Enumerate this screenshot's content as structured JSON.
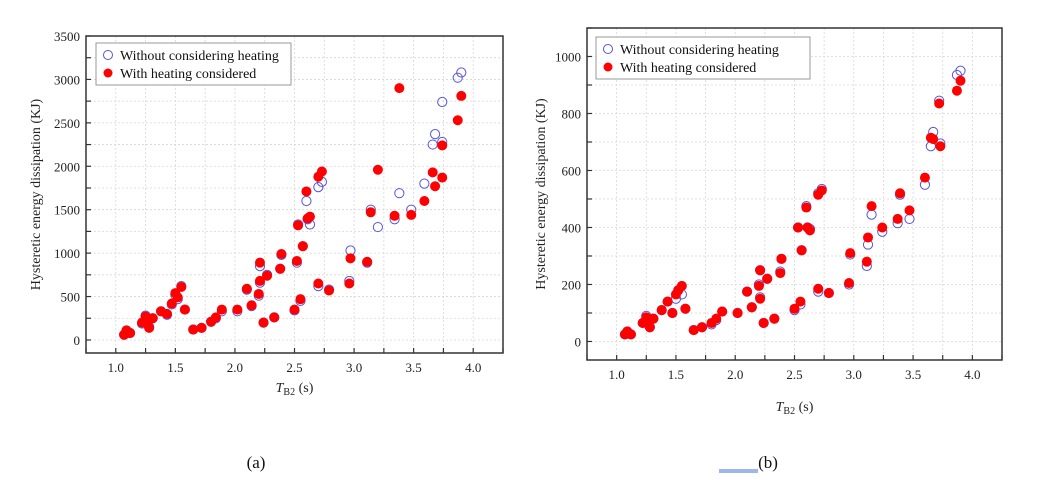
{
  "chart_data": [
    {
      "type": "scatter",
      "panel_label": "(a)",
      "title": "",
      "xlabel_main": "T",
      "xlabel_sub": "B2",
      "xlabel_unit": " (s)",
      "ylabel": "Hysteretic energy dissipation (KJ)",
      "xlim": [
        0.75,
        4.25
      ],
      "ylim": [
        -150,
        3500
      ],
      "xticks": [
        1.0,
        1.5,
        2.0,
        2.5,
        3.0,
        3.5,
        4.0
      ],
      "xtick_labels": [
        "1.0",
        "1.5",
        "2.0",
        "2.5",
        "3.0",
        "3.5",
        "4.0"
      ],
      "yticks": [
        0,
        500,
        1000,
        1500,
        2000,
        2500,
        3000,
        3500
      ],
      "ytick_labels": [
        "0",
        "500",
        "1000",
        "1500",
        "2000",
        "2500",
        "3000",
        "3500"
      ],
      "grid": true,
      "legend_position": "top-left",
      "series": [
        {
          "name": "Without considering heating",
          "marker": "open-circle",
          "color": "#5555dd",
          "points": [
            [
              1.07,
              60
            ],
            [
              1.09,
              110
            ],
            [
              1.12,
              80
            ],
            [
              1.22,
              190
            ],
            [
              1.25,
              280
            ],
            [
              1.27,
              210
            ],
            [
              1.28,
              150
            ],
            [
              1.31,
              250
            ],
            [
              1.38,
              330
            ],
            [
              1.43,
              290
            ],
            [
              1.47,
              410
            ],
            [
              1.5,
              520
            ],
            [
              1.52,
              470
            ],
            [
              1.55,
              620
            ],
            [
              1.58,
              350
            ],
            [
              1.65,
              120
            ],
            [
              1.72,
              140
            ],
            [
              1.8,
              210
            ],
            [
              1.84,
              250
            ],
            [
              1.89,
              330
            ],
            [
              2.02,
              330
            ],
            [
              2.1,
              580
            ],
            [
              2.14,
              390
            ],
            [
              2.2,
              510
            ],
            [
              2.21,
              660
            ],
            [
              2.21,
              850
            ],
            [
              2.24,
              200
            ],
            [
              2.27,
              750
            ],
            [
              2.33,
              260
            ],
            [
              2.38,
              820
            ],
            [
              2.39,
              980
            ],
            [
              2.5,
              340
            ],
            [
              2.52,
              890
            ],
            [
              2.53,
              1330
            ],
            [
              2.55,
              450
            ],
            [
              2.57,
              1080
            ],
            [
              2.6,
              1600
            ],
            [
              2.61,
              1390
            ],
            [
              2.63,
              1330
            ],
            [
              2.7,
              620
            ],
            [
              2.7,
              1760
            ],
            [
              2.73,
              1820
            ],
            [
              2.79,
              580
            ],
            [
              2.96,
              680
            ],
            [
              2.97,
              1030
            ],
            [
              3.11,
              890
            ],
            [
              3.14,
              1500
            ],
            [
              3.2,
              1300
            ],
            [
              3.34,
              1390
            ],
            [
              3.38,
              1690
            ],
            [
              3.48,
              1500
            ],
            [
              3.59,
              1800
            ],
            [
              3.66,
              2250
            ],
            [
              3.68,
              2370
            ],
            [
              3.74,
              2740
            ],
            [
              3.74,
              2280
            ],
            [
              3.87,
              3020
            ],
            [
              3.9,
              3080
            ]
          ]
        },
        {
          "name": "With heating considered",
          "marker": "filled-circle",
          "color": "#ff0000",
          "points": [
            [
              1.07,
              60
            ],
            [
              1.09,
              110
            ],
            [
              1.12,
              80
            ],
            [
              1.22,
              200
            ],
            [
              1.25,
              270
            ],
            [
              1.27,
              220
            ],
            [
              1.28,
              140
            ],
            [
              1.31,
              250
            ],
            [
              1.38,
              330
            ],
            [
              1.43,
              300
            ],
            [
              1.47,
              420
            ],
            [
              1.5,
              540
            ],
            [
              1.52,
              490
            ],
            [
              1.55,
              610
            ],
            [
              1.58,
              350
            ],
            [
              1.65,
              120
            ],
            [
              1.72,
              140
            ],
            [
              1.8,
              210
            ],
            [
              1.84,
              260
            ],
            [
              1.89,
              350
            ],
            [
              2.02,
              350
            ],
            [
              2.1,
              590
            ],
            [
              2.14,
              400
            ],
            [
              2.2,
              530
            ],
            [
              2.21,
              680
            ],
            [
              2.21,
              890
            ],
            [
              2.24,
              200
            ],
            [
              2.27,
              740
            ],
            [
              2.33,
              260
            ],
            [
              2.38,
              820
            ],
            [
              2.39,
              990
            ],
            [
              2.5,
              350
            ],
            [
              2.52,
              910
            ],
            [
              2.53,
              1320
            ],
            [
              2.55,
              470
            ],
            [
              2.57,
              1080
            ],
            [
              2.6,
              1710
            ],
            [
              2.61,
              1400
            ],
            [
              2.63,
              1420
            ],
            [
              2.7,
              650
            ],
            [
              2.7,
              1880
            ],
            [
              2.73,
              1940
            ],
            [
              2.79,
              570
            ],
            [
              2.96,
              650
            ],
            [
              2.97,
              940
            ],
            [
              3.11,
              900
            ],
            [
              3.14,
              1470
            ],
            [
              3.2,
              1960
            ],
            [
              3.34,
              1430
            ],
            [
              3.38,
              2900
            ],
            [
              3.48,
              1440
            ],
            [
              3.59,
              1600
            ],
            [
              3.66,
              1930
            ],
            [
              3.68,
              1770
            ],
            [
              3.74,
              1870
            ],
            [
              3.74,
              2240
            ],
            [
              3.87,
              2530
            ],
            [
              3.9,
              2810
            ]
          ]
        }
      ]
    },
    {
      "type": "scatter",
      "panel_label": "(b)",
      "title": "",
      "xlabel_main": "T",
      "xlabel_sub": "B2",
      "xlabel_unit": " (s)",
      "ylabel": "Hysteretic energy dissipation (KJ)",
      "xlim": [
        0.75,
        4.25
      ],
      "ylim": [
        -65,
        1100
      ],
      "xticks": [
        1.0,
        1.5,
        2.0,
        2.5,
        3.0,
        3.5,
        4.0
      ],
      "xtick_labels": [
        "1.0",
        "1.5",
        "2.0",
        "2.5",
        "3.0",
        "3.5",
        "4.0"
      ],
      "yticks": [
        0,
        200,
        400,
        600,
        800,
        1000
      ],
      "ytick_labels": [
        "0",
        "200",
        "400",
        "600",
        "800",
        "1000"
      ],
      "grid": true,
      "legend_position": "top-left",
      "series": [
        {
          "name": "Without considering heating",
          "marker": "open-circle",
          "color": "#5555dd",
          "points": [
            [
              1.07,
              25
            ],
            [
              1.09,
              35
            ],
            [
              1.12,
              25
            ],
            [
              1.22,
              65
            ],
            [
              1.25,
              90
            ],
            [
              1.27,
              65
            ],
            [
              1.28,
              50
            ],
            [
              1.31,
              80
            ],
            [
              1.38,
              110
            ],
            [
              1.43,
              140
            ],
            [
              1.47,
              100
            ],
            [
              1.5,
              150
            ],
            [
              1.52,
              180
            ],
            [
              1.55,
              165
            ],
            [
              1.58,
              115
            ],
            [
              1.65,
              40
            ],
            [
              1.72,
              50
            ],
            [
              1.8,
              60
            ],
            [
              1.84,
              75
            ],
            [
              1.89,
              105
            ],
            [
              2.02,
              100
            ],
            [
              2.1,
              175
            ],
            [
              2.14,
              120
            ],
            [
              2.2,
              200
            ],
            [
              2.21,
              155
            ],
            [
              2.21,
              250
            ],
            [
              2.24,
              65
            ],
            [
              2.27,
              220
            ],
            [
              2.33,
              80
            ],
            [
              2.38,
              245
            ],
            [
              2.39,
              290
            ],
            [
              2.5,
              110
            ],
            [
              2.53,
              400
            ],
            [
              2.55,
              130
            ],
            [
              2.56,
              320
            ],
            [
              2.6,
              475
            ],
            [
              2.61,
              400
            ],
            [
              2.63,
              395
            ],
            [
              2.7,
              175
            ],
            [
              2.7,
              520
            ],
            [
              2.73,
              535
            ],
            [
              2.79,
              170
            ],
            [
              2.96,
              200
            ],
            [
              2.97,
              305
            ],
            [
              3.11,
              265
            ],
            [
              3.12,
              340
            ],
            [
              3.15,
              445
            ],
            [
              3.24,
              385
            ],
            [
              3.37,
              415
            ],
            [
              3.39,
              515
            ],
            [
              3.47,
              430
            ],
            [
              3.6,
              550
            ],
            [
              3.65,
              685
            ],
            [
              3.67,
              735
            ],
            [
              3.72,
              845
            ],
            [
              3.73,
              695
            ],
            [
              3.87,
              935
            ],
            [
              3.9,
              950
            ]
          ]
        },
        {
          "name": "With heating considered",
          "marker": "filled-circle",
          "color": "#ff0000",
          "points": [
            [
              1.07,
              25
            ],
            [
              1.09,
              35
            ],
            [
              1.12,
              25
            ],
            [
              1.22,
              65
            ],
            [
              1.25,
              85
            ],
            [
              1.27,
              65
            ],
            [
              1.28,
              50
            ],
            [
              1.31,
              80
            ],
            [
              1.38,
              110
            ],
            [
              1.43,
              140
            ],
            [
              1.47,
              100
            ],
            [
              1.5,
              165
            ],
            [
              1.52,
              180
            ],
            [
              1.55,
              195
            ],
            [
              1.58,
              115
            ],
            [
              1.65,
              40
            ],
            [
              1.72,
              50
            ],
            [
              1.8,
              65
            ],
            [
              1.84,
              80
            ],
            [
              1.89,
              105
            ],
            [
              2.02,
              100
            ],
            [
              2.1,
              175
            ],
            [
              2.14,
              120
            ],
            [
              2.2,
              195
            ],
            [
              2.21,
              150
            ],
            [
              2.21,
              250
            ],
            [
              2.24,
              65
            ],
            [
              2.27,
              220
            ],
            [
              2.33,
              80
            ],
            [
              2.38,
              240
            ],
            [
              2.39,
              290
            ],
            [
              2.5,
              115
            ],
            [
              2.53,
              400
            ],
            [
              2.55,
              140
            ],
            [
              2.56,
              320
            ],
            [
              2.6,
              470
            ],
            [
              2.61,
              400
            ],
            [
              2.63,
              390
            ],
            [
              2.7,
              185
            ],
            [
              2.7,
              515
            ],
            [
              2.73,
              530
            ],
            [
              2.79,
              170
            ],
            [
              2.96,
              205
            ],
            [
              2.97,
              310
            ],
            [
              3.11,
              280
            ],
            [
              3.12,
              365
            ],
            [
              3.15,
              475
            ],
            [
              3.24,
              400
            ],
            [
              3.37,
              430
            ],
            [
              3.39,
              520
            ],
            [
              3.47,
              460
            ],
            [
              3.6,
              575
            ],
            [
              3.65,
              715
            ],
            [
              3.67,
              710
            ],
            [
              3.72,
              835
            ],
            [
              3.73,
              685
            ],
            [
              3.87,
              880
            ],
            [
              3.9,
              915
            ]
          ]
        }
      ]
    }
  ],
  "page": {
    "caption_a": "(a)",
    "caption_b": "(b)"
  }
}
